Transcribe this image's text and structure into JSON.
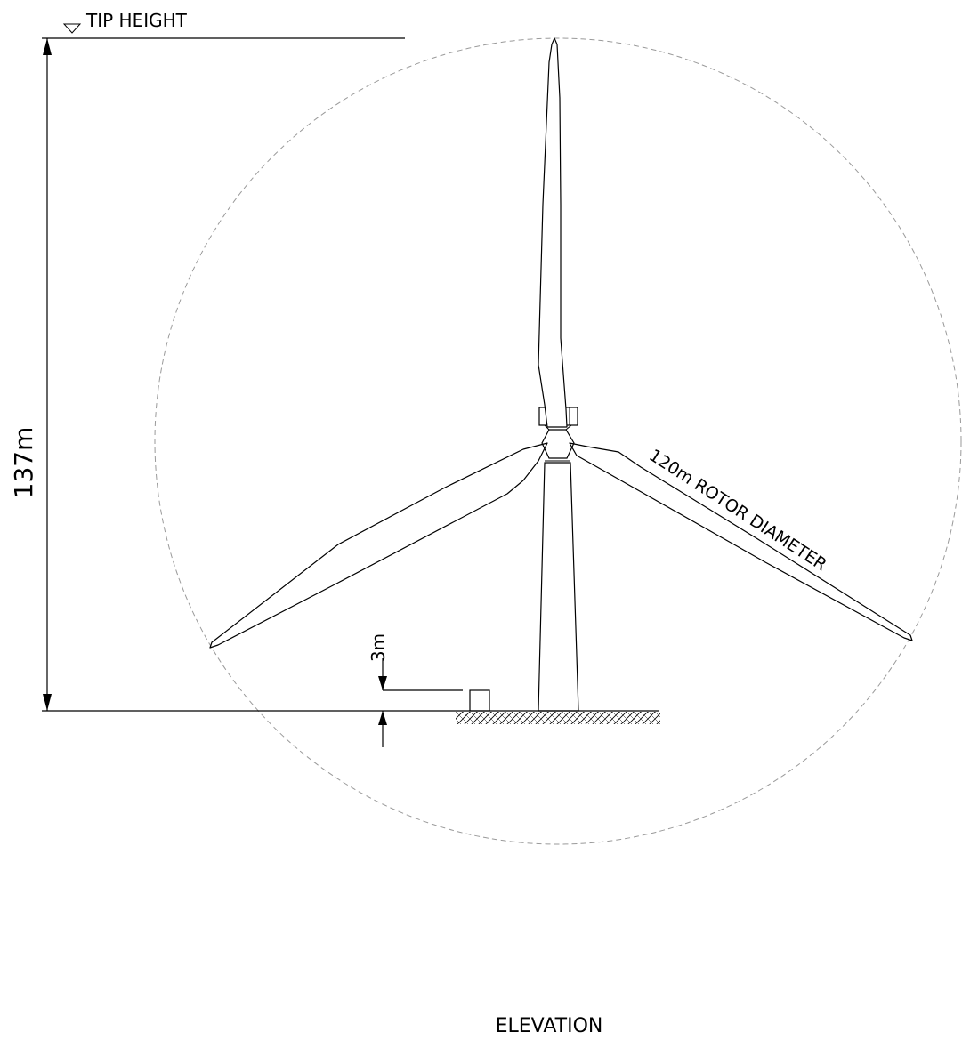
{
  "drawing": {
    "tip_height_label": "TIP HEIGHT",
    "overall_height_label": "137m",
    "rotor_diameter_label": "120m ROTOR DIAMETER",
    "clearance_label": "3m",
    "view_title": "ELEVATION"
  },
  "colors": {
    "line": "#000000",
    "rotor_circle": "#9a9a9a",
    "background": "#ffffff"
  }
}
